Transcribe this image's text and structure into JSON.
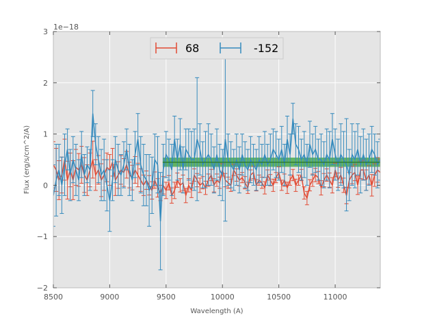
{
  "chart_data": {
    "type": "line",
    "xlabel": "Wavelength (A)",
    "ylabel": "Flux (erg/s/cm^2/A)",
    "y_offset_label": "1e−18",
    "xlim": [
      8500,
      11400
    ],
    "ylim": [
      -2,
      3
    ],
    "y_scale_exponent": -18,
    "x_ticks": [
      8500,
      9000,
      9500,
      10000,
      10500,
      11000
    ],
    "x_tick_labels": [
      "8500",
      "9000",
      "9500",
      "10000",
      "10500",
      "11000"
    ],
    "y_ticks": [
      -2,
      -1,
      0,
      1,
      2,
      3
    ],
    "y_tick_labels": [
      "−2",
      "−1",
      "0",
      "1",
      "2",
      "3"
    ],
    "grid": true,
    "legend_position": "top-center",
    "background": "#e5e5e5",
    "band": {
      "x_start": 9470,
      "x_end": 11400,
      "y_low": 0.36,
      "y_high": 0.54,
      "color": "#2ca02c"
    },
    "band_line": {
      "y": 0.45,
      "color": "#2e7d32"
    },
    "series": [
      {
        "name": "68",
        "color": "#e24a33",
        "x_start": 8500,
        "x_step": 25,
        "values": [
          0.4,
          0.3,
          0.1,
          0.2,
          0.5,
          0.1,
          0.3,
          0.1,
          0.35,
          0.3,
          0.4,
          0.2,
          0.1,
          0.3,
          0.5,
          0.2,
          0.3,
          0.1,
          0.2,
          0.35,
          0.3,
          0.45,
          0.1,
          0.2,
          0.3,
          0.25,
          0.4,
          0.2,
          0.15,
          0.3,
          0.2,
          0.1,
          0.0,
          0.1,
          0.0,
          -0.1,
          0.1,
          -0.05,
          -0.15,
          0.0,
          -0.1,
          0.05,
          -0.2,
          -0.1,
          0.1,
          0.0,
          0.05,
          -0.2,
          0.0,
          -0.1,
          0.2,
          0.1,
          0.0,
          0.05,
          -0.05,
          0.1,
          0.2,
          0.0,
          0.1,
          0.05,
          0.3,
          0.1,
          0.05,
          0.0,
          0.3,
          0.2,
          0.1,
          0.15,
          0.05,
          -0.05,
          0.2,
          0.25,
          0.0,
          0.1,
          0.05,
          -0.05,
          0.2,
          0.1,
          0.0,
          0.15,
          0.25,
          0.0,
          0.1,
          -0.05,
          0.1,
          0.2,
          0.0,
          0.1,
          0.2,
          -0.15,
          -0.25,
          0.0,
          0.1,
          0.2,
          0.15,
          -0.05,
          0.1,
          0.2,
          0.1,
          0.0,
          0.3,
          0.1,
          0.2,
          0.0,
          -0.2,
          0.1,
          0.2,
          0.25,
          0.0,
          0.3,
          0.3,
          0.1,
          0.2,
          0.0,
          0.2,
          0.3,
          0.25
        ],
        "errors": [
          0.45,
          0.42,
          0.38,
          0.35,
          0.4,
          0.37,
          0.33,
          0.38,
          0.35,
          0.32,
          0.36,
          0.34,
          0.3,
          0.33,
          0.36,
          0.3,
          0.28,
          0.32,
          0.3,
          0.28,
          0.3,
          0.27,
          0.3,
          0.26,
          0.28,
          0.27,
          0.26,
          0.25,
          0.24,
          0.26,
          0.23,
          0.22,
          0.2,
          0.18,
          0.19,
          0.17,
          0.16,
          0.18,
          0.15,
          0.17,
          0.16,
          0.14,
          0.15,
          0.16,
          0.14,
          0.13,
          0.15,
          0.14,
          0.13,
          0.14,
          0.12,
          0.13,
          0.14,
          0.12,
          0.13,
          0.12,
          0.11,
          0.13,
          0.12,
          0.11,
          0.12,
          0.13,
          0.11,
          0.12,
          0.11,
          0.12,
          0.11,
          0.1,
          0.12,
          0.11,
          0.1,
          0.12,
          0.11,
          0.1,
          0.11,
          0.12,
          0.1,
          0.11,
          0.12,
          0.1,
          0.11,
          0.1,
          0.12,
          0.11,
          0.1,
          0.11,
          0.12,
          0.1,
          0.11,
          0.12,
          0.13,
          0.11,
          0.12,
          0.13,
          0.12,
          0.14,
          0.13,
          0.12,
          0.14,
          0.15,
          0.13,
          0.14,
          0.15,
          0.14,
          0.16,
          0.15,
          0.17,
          0.16,
          0.18,
          0.17,
          0.19,
          0.2,
          0.18,
          0.21,
          0.22,
          0.24,
          0.25
        ]
      },
      {
        "name": "-152",
        "color": "#348abd",
        "x_start": 8500,
        "x_step": 25,
        "values": [
          -0.2,
          0.1,
          0.3,
          0.0,
          0.4,
          0.7,
          0.2,
          0.5,
          0.3,
          0.1,
          0.6,
          0.2,
          0.4,
          0.3,
          1.4,
          0.8,
          0.5,
          0.2,
          0.3,
          0.0,
          -0.3,
          0.1,
          0.5,
          0.3,
          0.2,
          0.4,
          0.7,
          0.3,
          0.1,
          0.6,
          0.9,
          0.4,
          0.2,
          0.1,
          -0.1,
          0.0,
          0.5,
          0.4,
          -0.7,
          0.3,
          0.6,
          0.5,
          0.3,
          0.9,
          0.5,
          0.8,
          0.3,
          0.7,
          0.6,
          0.5,
          0.5,
          0.9,
          0.7,
          0.4,
          0.5,
          0.6,
          0.5,
          0.3,
          0.6,
          0.3,
          0.2,
          0.9,
          0.5,
          0.4,
          0.3,
          0.5,
          0.3,
          0.6,
          0.4,
          0.3,
          0.5,
          0.4,
          0.3,
          0.5,
          0.4,
          0.6,
          0.4,
          0.5,
          0.7,
          0.6,
          0.5,
          0.7,
          0.4,
          0.9,
          0.6,
          1.3,
          0.8,
          0.7,
          0.5,
          0.6,
          0.4,
          0.8,
          0.6,
          0.7,
          0.5,
          0.5,
          0.4,
          0.6,
          0.5,
          0.9,
          0.6,
          0.4,
          0.6,
          0.5,
          0.4,
          0.2,
          0.6,
          0.5,
          0.7,
          0.4,
          0.6,
          0.4,
          0.5,
          0.7,
          0.6,
          0.4,
          0.5
        ],
        "errors": [
          0.6,
          0.7,
          0.5,
          0.55,
          0.6,
          0.4,
          0.5,
          0.45,
          0.5,
          0.4,
          0.45,
          0.4,
          0.35,
          0.4,
          0.45,
          0.4,
          0.45,
          0.5,
          0.6,
          0.5,
          0.6,
          0.4,
          0.45,
          0.5,
          0.4,
          0.45,
          0.4,
          0.5,
          0.4,
          0.45,
          0.5,
          0.55,
          0.6,
          0.5,
          0.7,
          0.55,
          0.5,
          0.55,
          0.95,
          0.5,
          0.45,
          0.4,
          0.5,
          0.45,
          0.4,
          0.5,
          0.45,
          0.4,
          0.5,
          0.55,
          0.6,
          1.2,
          0.5,
          0.45,
          0.55,
          0.6,
          0.5,
          0.45,
          0.5,
          0.5,
          0.5,
          1.6,
          0.5,
          0.45,
          0.4,
          0.5,
          0.45,
          0.4,
          0.45,
          0.4,
          0.45,
          0.4,
          0.4,
          0.45,
          0.4,
          0.45,
          0.4,
          0.5,
          0.4,
          0.45,
          0.4,
          0.45,
          0.4,
          0.45,
          0.4,
          0.3,
          0.4,
          0.45,
          0.4,
          0.45,
          0.4,
          0.45,
          0.4,
          0.45,
          0.4,
          0.5,
          0.45,
          0.5,
          0.55,
          0.5,
          0.5,
          0.5,
          0.6,
          0.55,
          0.9,
          0.5,
          0.6,
          0.55,
          0.5,
          0.55,
          0.5,
          0.5,
          0.5,
          0.45,
          0.4,
          0.45,
          0.4
        ]
      }
    ]
  }
}
